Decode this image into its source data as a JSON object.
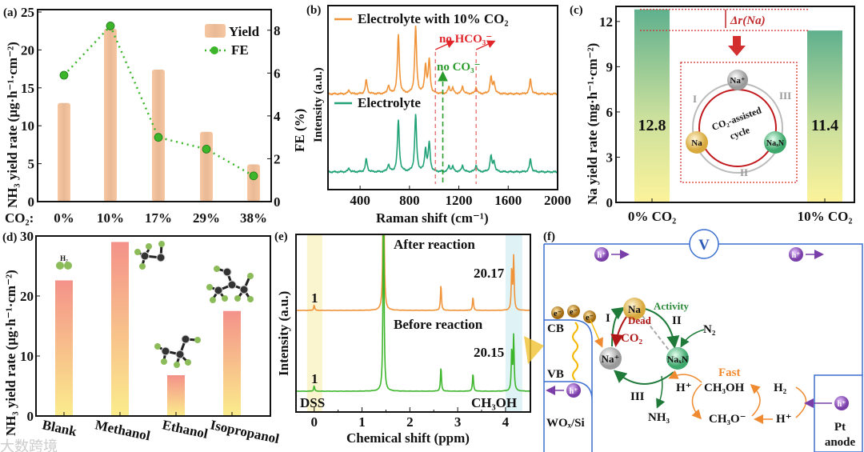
{
  "panels": {
    "a": {
      "label": "(a)"
    },
    "b": {
      "label": "(b)"
    },
    "c": {
      "label": "(c)"
    },
    "d": {
      "label": "(d)"
    },
    "e": {
      "label": "(e)"
    },
    "f": {
      "label": "(f)"
    }
  },
  "chart_data": [
    {
      "id": "a",
      "type": "bar",
      "category_prefix": "CO₂:",
      "categories": [
        "0%",
        "10%",
        "17%",
        "29%",
        "38%"
      ],
      "series": [
        {
          "name": "Yield",
          "type": "bar",
          "axis": "left",
          "color": "#f6c7a1",
          "values": [
            13.0,
            22.8,
            17.4,
            9.2,
            4.9
          ]
        },
        {
          "name": "FE",
          "type": "line",
          "axis": "right",
          "color": "#3cb52a",
          "values": [
            5.9,
            8.2,
            3.0,
            2.45,
            1.2
          ]
        }
      ],
      "ylabel": "NH₃ yield rate (µg·h⁻¹·cm⁻²)",
      "y2label": "FE (%)",
      "ylim": [
        0,
        25
      ],
      "y2lim": [
        0,
        9
      ],
      "yticks": [
        "0",
        "5",
        "10",
        "15",
        "20",
        "25"
      ],
      "y2ticks": [
        "0",
        "2",
        "4",
        "6",
        "8"
      ],
      "legend": {
        "position": "top-right",
        "entries": [
          "Yield",
          "FE"
        ]
      }
    },
    {
      "id": "b",
      "type": "line",
      "xlabel": "Raman shift (cm⁻¹)",
      "ylabel": "Intensity (a.u.)",
      "xlim": [
        140,
        2000
      ],
      "ylim": [
        0,
        10
      ],
      "xticks": [
        "400",
        "800",
        "1200",
        "1600",
        "2000"
      ],
      "series": [
        {
          "name": "Electrolyte with 10% CO₂",
          "color": "#f0943a",
          "baseline": 5.2,
          "peaks": [
            [
              310,
              0.2
            ],
            [
              450,
              0.75
            ],
            [
              630,
              0.45
            ],
            [
              710,
              3.2
            ],
            [
              850,
              3.65
            ],
            [
              930,
              1.5
            ],
            [
              960,
              1.8
            ],
            [
              1120,
              0.35
            ],
            [
              1150,
              0.3
            ],
            [
              1230,
              0.4
            ],
            [
              1340,
              0.35
            ],
            [
              1460,
              0.9
            ],
            [
              1485,
              0.6
            ],
            [
              1780,
              0.8
            ]
          ]
        },
        {
          "name": "Electrolyte",
          "color": "#22a278",
          "baseline": 0.96,
          "peaks": [
            [
              310,
              0.2
            ],
            [
              450,
              0.7
            ],
            [
              630,
              0.4
            ],
            [
              710,
              2.8
            ],
            [
              850,
              3.1
            ],
            [
              930,
              1.2
            ],
            [
              960,
              1.55
            ],
            [
              1120,
              0.3
            ],
            [
              1150,
              0.28
            ],
            [
              1230,
              0.35
            ],
            [
              1340,
              0.35
            ],
            [
              1460,
              0.85
            ],
            [
              1485,
              0.55
            ],
            [
              1780,
              0.7
            ]
          ]
        }
      ],
      "annotations": [
        {
          "text": "no HCO₃⁻",
          "color": "#e0262b",
          "at_cm": [
            1010,
            1340
          ]
        },
        {
          "text": "no CO₃⁻",
          "color": "#2a9a2a",
          "at_cm": [
            1070
          ]
        }
      ]
    },
    {
      "id": "c",
      "type": "bar",
      "categories": [
        "0% CO₂",
        "10% CO₂"
      ],
      "values": [
        12.8,
        11.4
      ],
      "value_labels": [
        "12.8",
        "11.4"
      ],
      "ylabel": "Na yield rate (mg·h⁻¹·cm⁻²)",
      "ylim": [
        0,
        13
      ],
      "yticks": [
        "0",
        "3",
        "6",
        "9",
        "12"
      ],
      "delta_label": "Δr(Na)",
      "inset": {
        "center": "CO₂-assisted",
        "center2": "cycle",
        "na_plus": "Na⁺",
        "na": "Na",
        "naxn": "NaₓN",
        "step1": "I",
        "step2": "II",
        "step3": "III"
      }
    },
    {
      "id": "d",
      "type": "bar",
      "categories": [
        "Blank",
        "Methanol",
        "Ethanol",
        "Isopropanol"
      ],
      "values": [
        22.6,
        29.0,
        6.8,
        17.5
      ],
      "ylabel": "NH₃ yield rate (µg·h⁻¹·cm⁻²)",
      "ylim": [
        0,
        30
      ],
      "yticks": [
        "0",
        "10",
        "20",
        "30"
      ],
      "molecule_label": "H₂"
    },
    {
      "id": "e",
      "type": "line",
      "xlabel": "Chemical shift (ppm)",
      "ylabel": "Intensity (a.u.)",
      "xlim": [
        -0.38,
        4.52
      ],
      "ylim": [
        0,
        10
      ],
      "xticks": [
        "0",
        "1",
        "2",
        "3",
        "4"
      ],
      "series": [
        {
          "name": "After reaction",
          "color": "#f0943a",
          "baseline": 5.72,
          "peaks": [
            [
              0,
              0.3
            ],
            [
              1.45,
              12
            ],
            [
              2.65,
              1.45
            ],
            [
              3.32,
              0.75
            ],
            [
              4.13,
              2.3
            ],
            [
              4.17,
              3.0
            ]
          ],
          "labels": {
            "dss": "1",
            "methanol": "20.17"
          }
        },
        {
          "name": "Before reaction",
          "color": "#3cb52a",
          "baseline": 1.17,
          "peaks": [
            [
              0,
              0.3
            ],
            [
              1.45,
              12
            ],
            [
              2.65,
              1.35
            ],
            [
              3.32,
              1.0
            ],
            [
              4.13,
              2.3
            ],
            [
              4.17,
              3.1
            ]
          ],
          "labels": {
            "dss": "1",
            "methanol": "20.15"
          }
        }
      ],
      "region_labels": [
        "DSS",
        "CH₃OH"
      ]
    }
  ],
  "diagram_f": {
    "voltmeter": "V",
    "hole": "h⁺",
    "electron": "e⁻",
    "cb": "CB",
    "vb": "VB",
    "photocathode": "WOₓ/Si",
    "na": "Na",
    "na_plus": "Na⁺",
    "naxn": "NaₓN",
    "activity": "Activity",
    "dead": "Dead",
    "co2": "CO₂",
    "n2": "N₂",
    "nh3": "NH₃",
    "step1": "I",
    "step2": "II",
    "step3": "III",
    "fast": "Fast",
    "h_plus": "H⁺",
    "methanol": "CH₃OH",
    "methoxide": "CH₃O⁻",
    "h2": "H₂",
    "anode1": "Pt",
    "anode2": "anode"
  },
  "watermark": "大数跨境"
}
